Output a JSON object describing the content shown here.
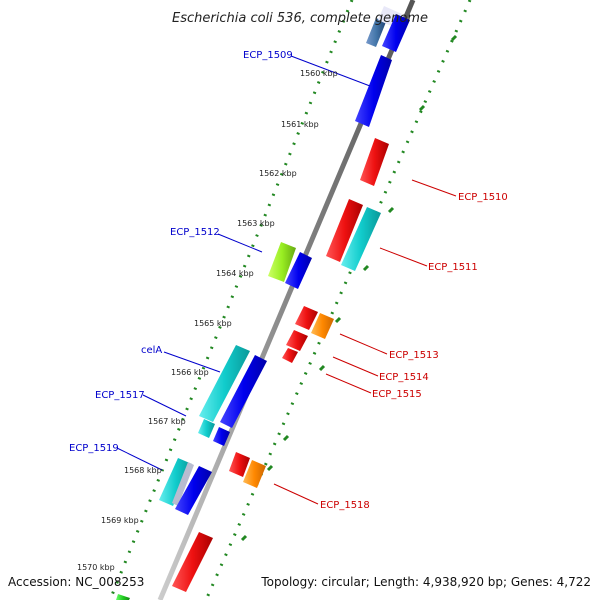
{
  "title": "Escherichia coli 536, complete genome",
  "footer": {
    "accession": "Accession: NC_008253",
    "topology": "Topology: circular; Length: 4,938,920 bp; Genes: 4,722"
  },
  "colors": {
    "blue": "#0000ee",
    "cyan": "#11cccc",
    "red": "#ee1111",
    "orange": "#ff8800",
    "lime": "#99ee22",
    "steel": "#4477aa",
    "green": "#22cc22",
    "backbone": "#888888",
    "guide": "#228822",
    "label_forward": "#0000cc",
    "label_reverse": "#cc0000"
  },
  "ticks": [
    "1560 kbp",
    "1561 kbp",
    "1562 kbp",
    "1563 kbp",
    "1564 kbp",
    "1565 kbp",
    "1566 kbp",
    "1567 kbp",
    "1568 kbp",
    "1569 kbp",
    "1570 kbp"
  ],
  "gene_labels": [
    {
      "text": "ECP_1509",
      "strand": "forward"
    },
    {
      "text": "ECP_1510",
      "strand": "reverse"
    },
    {
      "text": "ECP_1511",
      "strand": "reverse"
    },
    {
      "text": "ECP_1512",
      "strand": "forward"
    },
    {
      "text": "ECP_1513",
      "strand": "reverse"
    },
    {
      "text": "ECP_1514",
      "strand": "reverse"
    },
    {
      "text": "ECP_1515",
      "strand": "reverse"
    },
    {
      "text": "celA",
      "strand": "forward"
    },
    {
      "text": "ECP_1517",
      "strand": "forward"
    },
    {
      "text": "ECP_1518",
      "strand": "reverse"
    },
    {
      "text": "ECP_1519",
      "strand": "forward"
    }
  ]
}
